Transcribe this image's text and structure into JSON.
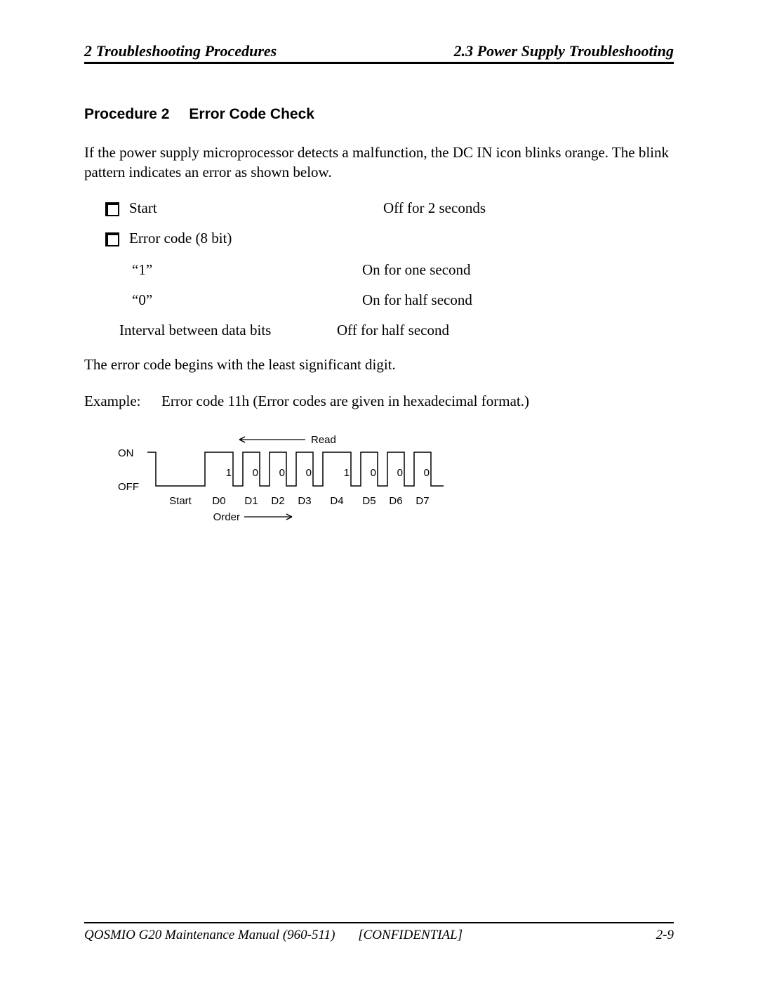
{
  "header": {
    "left": "2  Troubleshooting Procedures",
    "right": "2.3  Power Supply Troubleshooting"
  },
  "procedure": {
    "number": "Procedure 2",
    "title": "Error Code Check"
  },
  "intro": "If the power supply microprocessor detects a malfunction, the DC IN icon blinks orange. The blink pattern indicates an error as shown below.",
  "bullets": [
    {
      "label": "Start",
      "value": "Off for 2 seconds"
    },
    {
      "label": "Error code (8 bit)",
      "value": ""
    }
  ],
  "sub": [
    {
      "label": "“1”",
      "value": "On for one second"
    },
    {
      "label": "“0”",
      "value": "On for half second"
    },
    {
      "label": "Interval between data bits",
      "value": "Off for half second"
    }
  ],
  "note": "The error code begins with the least significant digit.",
  "example": {
    "label": "Example:",
    "text": "Error code 11h (Error codes are given in hexadecimal format.)"
  },
  "diagram": {
    "read_label": "Read",
    "on_label": "ON",
    "off_label": "OFF",
    "start_label": "Start",
    "order_label": "Order",
    "bit_labels": [
      "D0",
      "D1",
      "D2",
      "D3",
      "D4",
      "D5",
      "D6",
      "D7"
    ],
    "bit_values": [
      "1",
      "0",
      "0",
      "0",
      "1",
      "0",
      "0",
      "0"
    ],
    "stroke": "#000000",
    "font": "Arial, Helvetica, sans-serif",
    "font_size": 15
  },
  "footer": {
    "left": "QOSMIO G20  Maintenance Manual (960-511)",
    "center": "[CONFIDENTIAL]",
    "right": "2-9"
  }
}
